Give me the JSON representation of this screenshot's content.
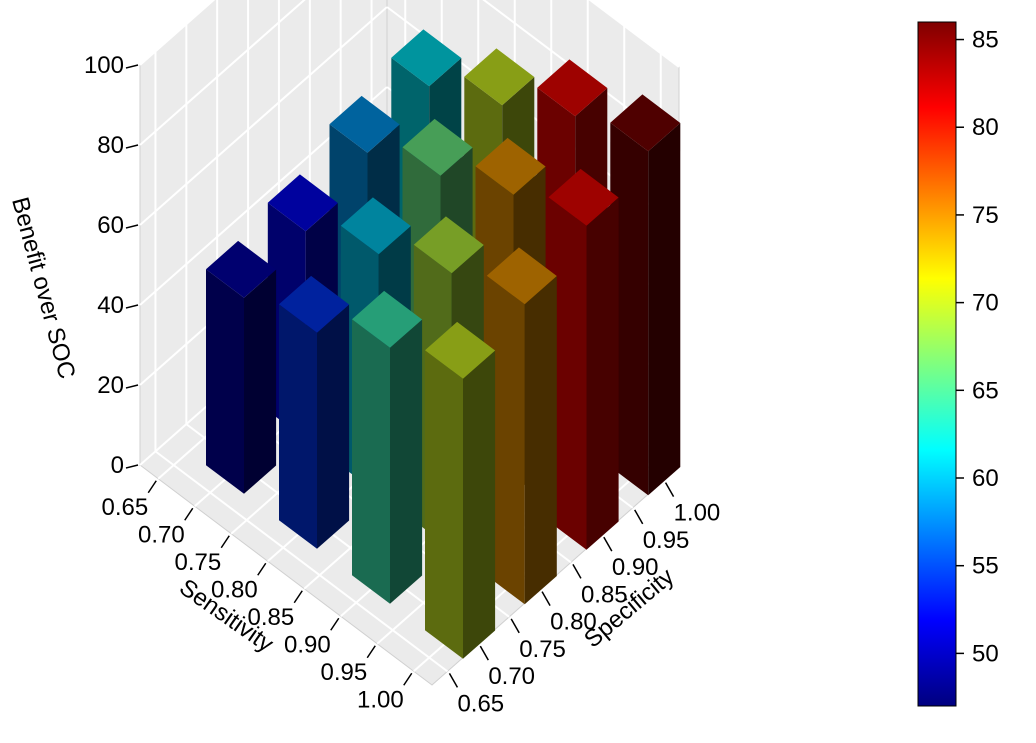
{
  "chart_data": {
    "type": "bar3d",
    "zlabel": "Benefit over SOC",
    "xlabel": "Sensitivity",
    "ylabel": "Specificity",
    "x_ticks": [
      "0.65",
      "0.70",
      "0.75",
      "0.80",
      "0.85",
      "0.90",
      "0.95",
      "1.00"
    ],
    "y_ticks": [
      "0.65",
      "0.70",
      "0.75",
      "0.80",
      "0.85",
      "0.90",
      "0.95",
      "1.00"
    ],
    "z_ticks": [
      "0",
      "20",
      "40",
      "60",
      "80",
      "100"
    ],
    "zlim": [
      0,
      100
    ],
    "grid": true,
    "colorbar": {
      "ticks": [
        "50",
        "55",
        "60",
        "65",
        "70",
        "75",
        "80",
        "85"
      ],
      "range": [
        47,
        86
      ],
      "colors": [
        "#00007F",
        "#0000FF",
        "#007FFF",
        "#00FFFF",
        "#7FFF7F",
        "#FFFF00",
        "#FF7F00",
        "#FF0000",
        "#7F0000"
      ]
    },
    "bars": [
      {
        "sensitivity": 0.7,
        "specificity": 0.7,
        "value": 49
      },
      {
        "sensitivity": 0.7,
        "specificity": 0.8,
        "value": 52
      },
      {
        "sensitivity": 0.7,
        "specificity": 0.9,
        "value": 58
      },
      {
        "sensitivity": 0.7,
        "specificity": 1.0,
        "value": 61
      },
      {
        "sensitivity": 0.8,
        "specificity": 0.7,
        "value": 54
      },
      {
        "sensitivity": 0.8,
        "specificity": 0.8,
        "value": 60
      },
      {
        "sensitivity": 0.8,
        "specificity": 0.9,
        "value": 66
      },
      {
        "sensitivity": 0.8,
        "specificity": 1.0,
        "value": 70
      },
      {
        "sensitivity": 0.9,
        "specificity": 0.7,
        "value": 64
      },
      {
        "sensitivity": 0.9,
        "specificity": 0.8,
        "value": 69
      },
      {
        "sensitivity": 0.9,
        "specificity": 0.9,
        "value": 75
      },
      {
        "sensitivity": 0.9,
        "specificity": 1.0,
        "value": 81
      },
      {
        "sensitivity": 1.0,
        "specificity": 0.7,
        "value": 70
      },
      {
        "sensitivity": 1.0,
        "specificity": 0.8,
        "value": 75
      },
      {
        "sensitivity": 1.0,
        "specificity": 0.9,
        "value": 81
      },
      {
        "sensitivity": 1.0,
        "specificity": 1.0,
        "value": 86
      }
    ]
  }
}
